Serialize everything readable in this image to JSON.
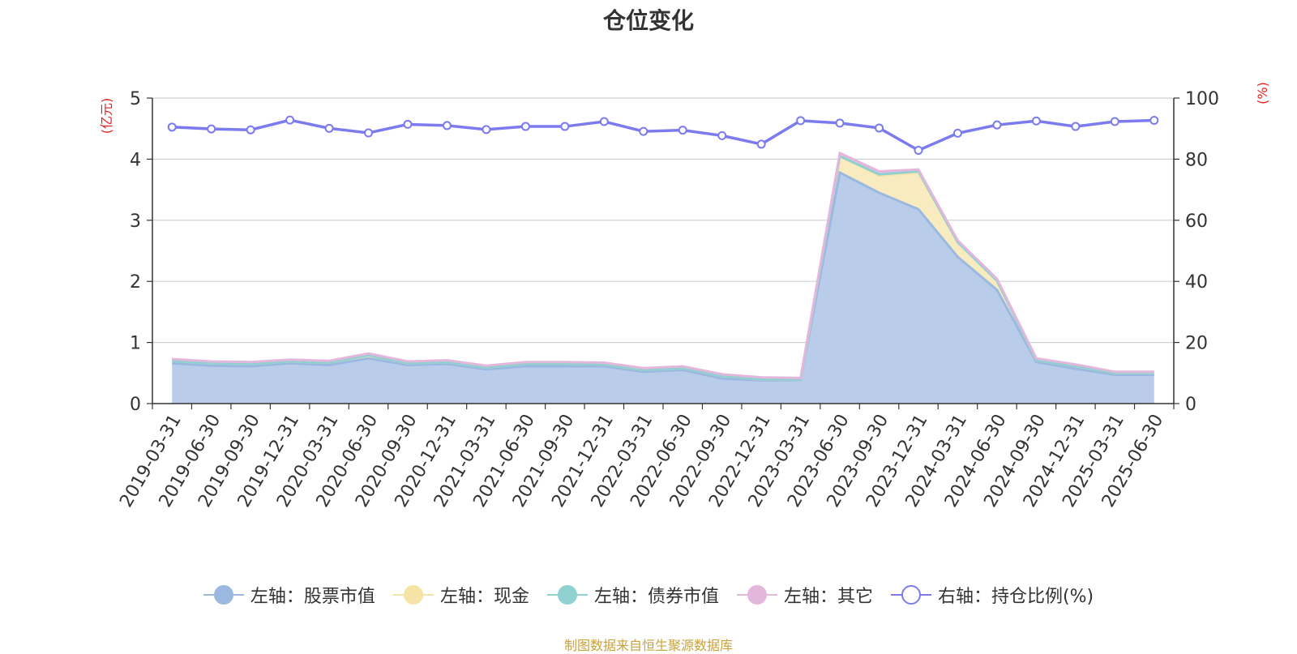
{
  "chart_data": {
    "type": "area",
    "title": "仓位变化",
    "left_axis": {
      "unit_label": "(亿元)",
      "ylim": [
        0,
        5
      ],
      "ticks": [
        "0",
        "1",
        "2",
        "3",
        "4",
        "5"
      ]
    },
    "right_axis": {
      "unit_label": "(%)",
      "ylim": [
        0,
        100
      ],
      "ticks": [
        "0",
        "20",
        "40",
        "60",
        "80",
        "100"
      ]
    },
    "categories": [
      "2019-03-31",
      "2019-06-30",
      "2019-09-30",
      "2019-12-31",
      "2020-03-31",
      "2020-06-30",
      "2020-09-30",
      "2020-12-31",
      "2021-03-31",
      "2021-06-30",
      "2021-09-30",
      "2021-12-31",
      "2022-03-31",
      "2022-06-30",
      "2022-09-30",
      "2022-12-31",
      "2023-03-31",
      "2023-06-30",
      "2023-09-30",
      "2023-12-31",
      "2024-03-31",
      "2024-06-30",
      "2024-09-30",
      "2024-12-31",
      "2025-03-31",
      "2025-06-30"
    ],
    "series": [
      {
        "name": "左轴：股票市值",
        "axis": "left",
        "stack": true,
        "color": "#9bb8e0",
        "fill": "#b9cdeb",
        "values": [
          0.66,
          0.62,
          0.61,
          0.66,
          0.63,
          0.74,
          0.63,
          0.65,
          0.56,
          0.61,
          0.61,
          0.61,
          0.52,
          0.55,
          0.41,
          0.38,
          0.39,
          3.78,
          3.45,
          3.18,
          2.4,
          1.86,
          0.68,
          0.57,
          0.47,
          0.47
        ]
      },
      {
        "name": "左轴：现金",
        "axis": "left",
        "stack": true,
        "color": "#f5e4a6",
        "fill": "#f8ebc0",
        "values": [
          0.04,
          0.04,
          0.04,
          0.03,
          0.04,
          0.05,
          0.03,
          0.03,
          0.03,
          0.04,
          0.04,
          0.03,
          0.03,
          0.03,
          0.04,
          0.02,
          0.01,
          0.27,
          0.28,
          0.6,
          0.24,
          0.15,
          0.03,
          0.04,
          0.03,
          0.03
        ]
      },
      {
        "name": "左轴：债券市值",
        "axis": "left",
        "stack": true,
        "color": "#8fd1d1",
        "fill": "#a8dcdc",
        "values": [
          0,
          0,
          0,
          0,
          0,
          0,
          0,
          0,
          0,
          0,
          0,
          0,
          0,
          0,
          0,
          0,
          0,
          0,
          0.02,
          0.02,
          0,
          0,
          0,
          0,
          0,
          0
        ]
      },
      {
        "name": "左轴：其它",
        "axis": "left",
        "stack": true,
        "color": "#e3b6dc",
        "fill": "#e8c2e1",
        "values": [
          0.03,
          0.03,
          0.03,
          0.03,
          0.03,
          0.03,
          0.03,
          0.03,
          0.03,
          0.03,
          0.03,
          0.03,
          0.03,
          0.03,
          0.03,
          0.03,
          0.02,
          0.05,
          0.05,
          0.03,
          0.03,
          0.03,
          0.03,
          0.03,
          0.02,
          0.02
        ]
      },
      {
        "name": "右轴：持仓比例(%)",
        "axis": "right",
        "stack": false,
        "color": "#7b7bef",
        "values": [
          90.5,
          89.9,
          89.6,
          92.8,
          90.1,
          88.6,
          91.4,
          91.0,
          89.7,
          90.7,
          90.7,
          92.3,
          89.1,
          89.5,
          87.7,
          84.9,
          92.6,
          91.8,
          90.2,
          82.9,
          88.5,
          91.2,
          92.5,
          90.7,
          92.3,
          92.7
        ]
      }
    ],
    "grid": true,
    "legend_position": "bottom-center"
  },
  "footer": {
    "source_text": "制图数据来自恒生聚源数据库"
  }
}
